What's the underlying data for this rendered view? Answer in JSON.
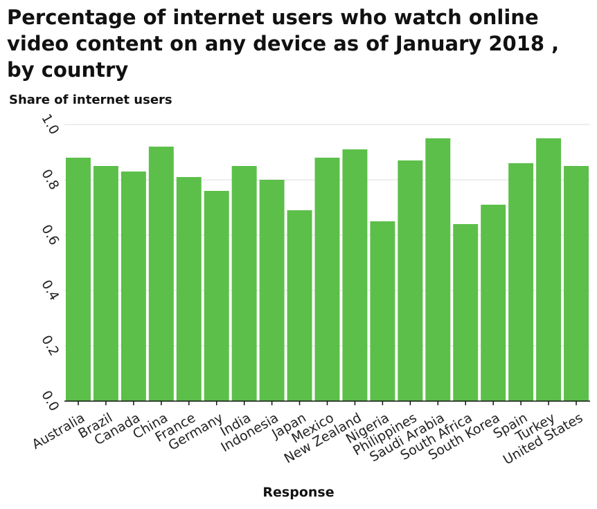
{
  "chart_data": {
    "type": "bar",
    "title": "Percentage of internet users who watch online video content on any device as of January 2018 , by country",
    "xlabel": "Response",
    "ylabel": "Share of internet users",
    "categories": [
      "Australia",
      "Brazil",
      "Canada",
      "China",
      "France",
      "Germany",
      "India",
      "Indonesia",
      "Japan",
      "Mexico",
      "New Zealand",
      "Nigeria",
      "Philippines",
      "Saudi Arabia",
      "South Africa",
      "South Korea",
      "Spain",
      "Turkey",
      "United States"
    ],
    "values": [
      0.88,
      0.85,
      0.83,
      0.92,
      0.81,
      0.76,
      0.85,
      0.8,
      0.69,
      0.88,
      0.91,
      0.65,
      0.87,
      0.95,
      0.64,
      0.71,
      0.86,
      0.95,
      0.85
    ],
    "ylim": [
      0,
      1.0
    ],
    "yticks": [
      "0.0",
      "0.2",
      "0.4",
      "0.6",
      "0.8",
      "1.0"
    ],
    "grid": true,
    "bar_color": "#5cbf4a"
  }
}
